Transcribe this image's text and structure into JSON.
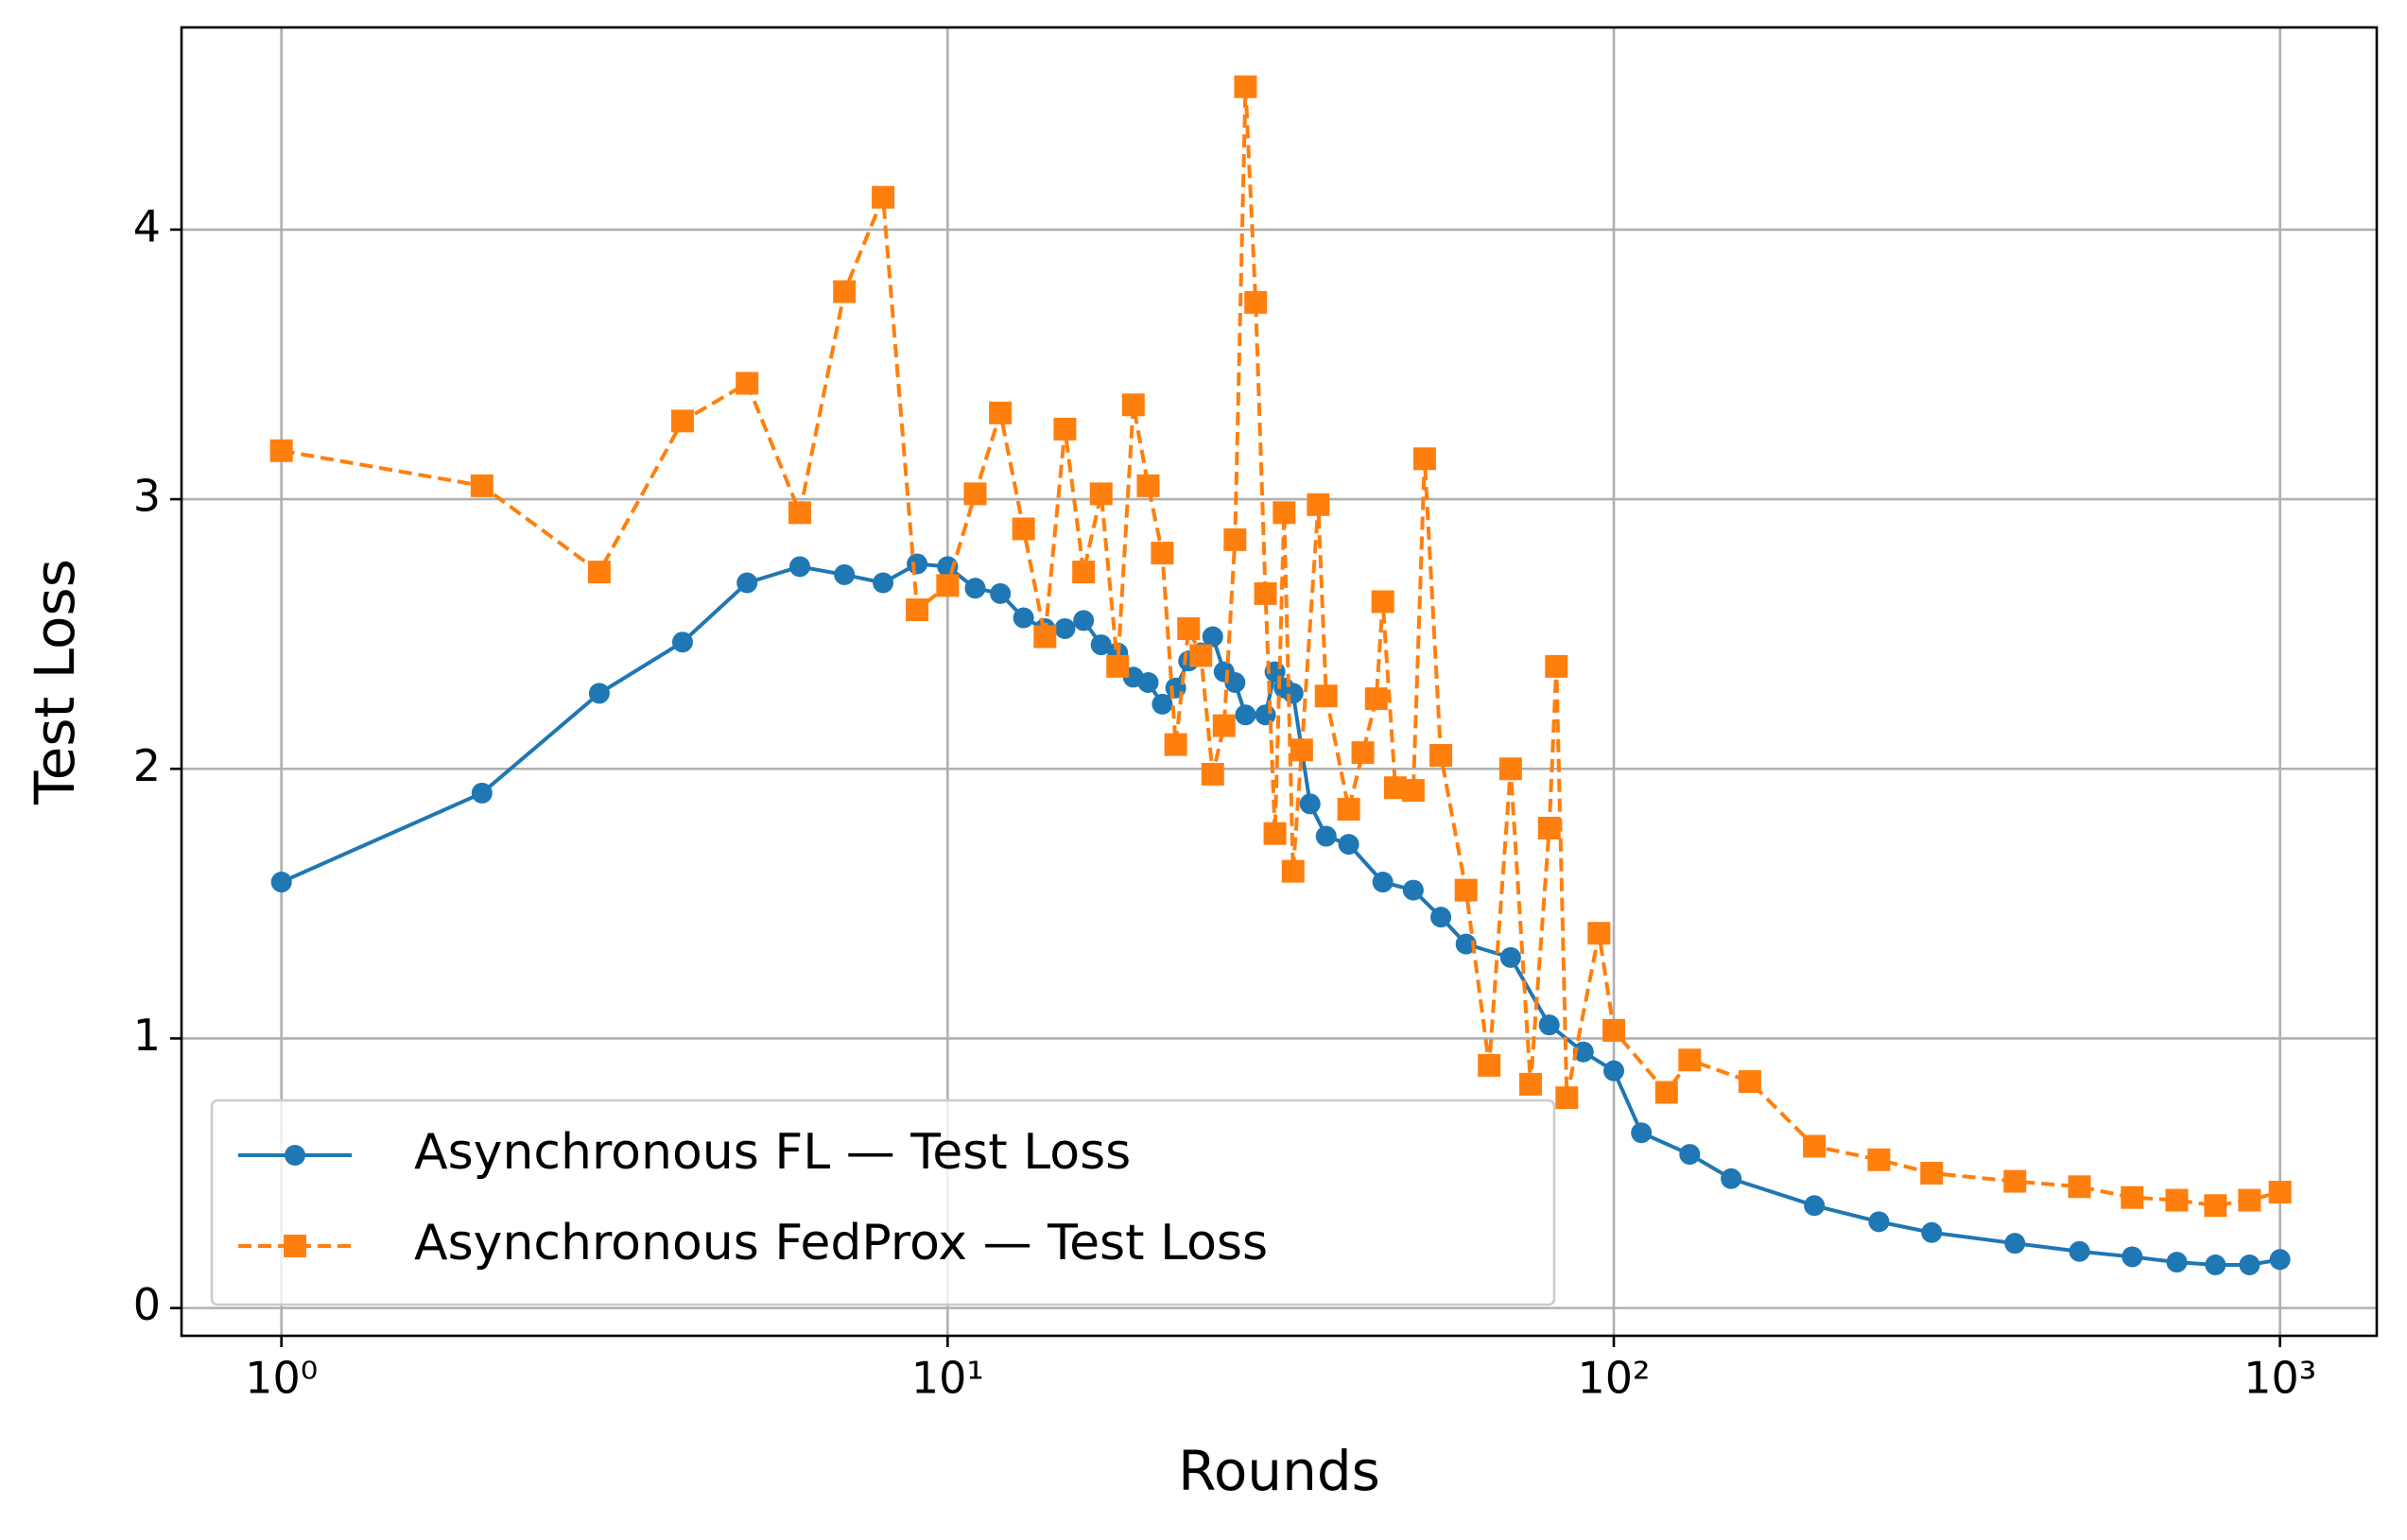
{
  "chart_data": {
    "type": "line",
    "x_label": "Rounds",
    "y_label": "Test Loss",
    "xscale": "log",
    "grid": true,
    "legend": "lower left",
    "xlim": [
      0.708,
      1397
    ],
    "ylim": [
      -0.103,
      4.75
    ],
    "xticks": [
      {
        "value": 1,
        "label": "10⁰"
      },
      {
        "value": 10,
        "label": "10¹"
      },
      {
        "value": 100,
        "label": "10²"
      },
      {
        "value": 1000,
        "label": "10³"
      }
    ],
    "yticks": [
      0,
      1,
      2,
      3,
      4
    ],
    "series": [
      {
        "name": "Asynchronous FL — Test Loss",
        "color": "#1f77b4",
        "marker": "circle",
        "dash": "solid",
        "x": [
          1,
          2,
          3,
          4,
          5,
          6,
          7,
          8,
          9,
          10,
          11,
          12,
          13,
          14,
          15,
          16,
          17,
          18,
          19,
          20,
          21,
          22,
          23,
          24,
          25,
          26,
          27,
          28,
          30,
          31,
          32,
          33,
          35,
          37,
          40,
          45,
          50,
          55,
          60,
          70,
          80,
          90,
          100,
          110,
          130,
          150,
          200,
          250,
          300,
          400,
          500,
          600,
          700,
          800,
          900,
          1000
        ],
        "values": [
          1.58,
          1.91,
          2.28,
          2.47,
          2.69,
          2.75,
          2.72,
          2.69,
          2.76,
          2.75,
          2.67,
          2.65,
          2.56,
          2.52,
          2.52,
          2.55,
          2.46,
          2.43,
          2.34,
          2.32,
          2.24,
          2.3,
          2.4,
          2.43,
          2.49,
          2.36,
          2.32,
          2.2,
          2.2,
          2.36,
          2.3,
          2.28,
          1.87,
          1.75,
          1.72,
          1.58,
          1.55,
          1.45,
          1.35,
          1.3,
          1.05,
          0.95,
          0.88,
          0.65,
          0.57,
          0.48,
          0.38,
          0.32,
          0.28,
          0.24,
          0.21,
          0.19,
          0.17,
          0.16,
          0.16,
          0.18
        ]
      },
      {
        "name": "Asynchronous FedProx — Test Loss",
        "color": "#ff7f0e",
        "marker": "square",
        "dash": "dashed",
        "x": [
          1,
          2,
          3,
          4,
          5,
          6,
          7,
          8,
          9,
          10,
          11,
          12,
          13,
          14,
          15,
          16,
          17,
          18,
          19,
          20,
          21,
          22,
          23,
          24,
          25,
          26,
          27,
          28,
          29,
          30,
          31,
          32,
          33,
          34,
          36,
          37,
          40,
          42,
          44,
          45,
          47,
          50,
          52,
          55,
          60,
          65,
          70,
          75,
          80,
          82,
          85,
          95,
          100,
          120,
          130,
          160,
          200,
          250,
          300,
          400,
          500,
          600,
          700,
          800,
          900,
          1000
        ],
        "values": [
          3.18,
          3.05,
          2.73,
          3.29,
          3.43,
          2.95,
          3.77,
          4.12,
          2.59,
          2.68,
          3.02,
          3.32,
          2.89,
          2.49,
          3.26,
          2.73,
          3.02,
          2.38,
          3.35,
          3.05,
          2.8,
          2.09,
          2.52,
          2.42,
          1.98,
          2.16,
          2.85,
          4.53,
          3.73,
          2.65,
          1.76,
          2.95,
          1.62,
          2.07,
          2.98,
          2.27,
          1.85,
          2.06,
          2.26,
          2.62,
          1.93,
          1.92,
          3.15,
          2.05,
          1.55,
          0.9,
          2.0,
          0.83,
          1.78,
          2.38,
          0.78,
          1.39,
          1.03,
          0.8,
          0.92,
          0.84,
          0.6,
          0.55,
          0.5,
          0.47,
          0.45,
          0.41,
          0.4,
          0.38,
          0.4,
          0.43
        ]
      }
    ]
  }
}
